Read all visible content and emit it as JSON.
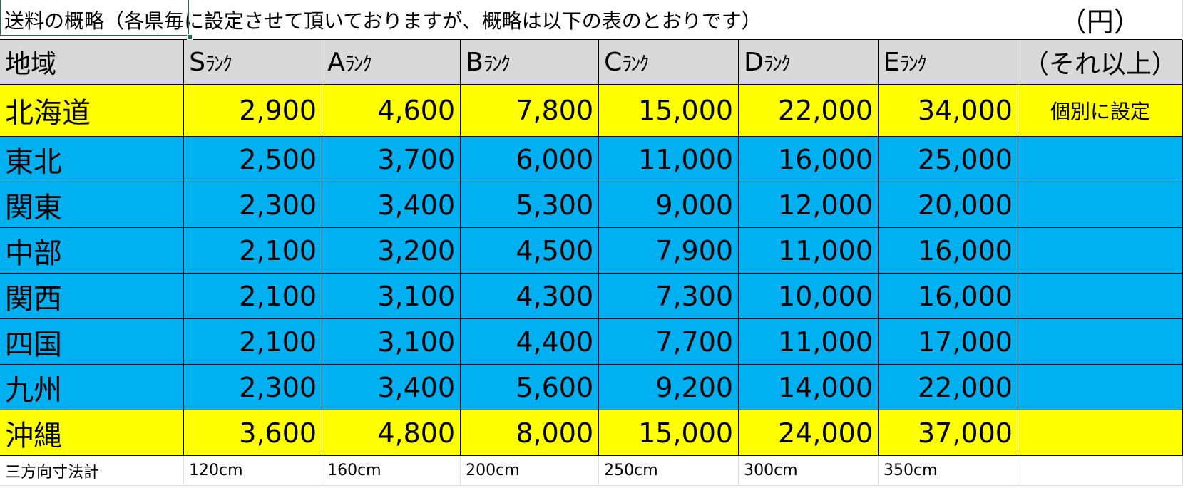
{
  "title": "送料の概略（各県毎に設定させて頂いておりますが、概略は以下の表のとおりです）",
  "unit": "（円）",
  "header": {
    "region": "地域",
    "ranks": [
      {
        "letter": "S",
        "kana": "ﾗﾝｸ"
      },
      {
        "letter": "A",
        "kana": "ﾗﾝｸ"
      },
      {
        "letter": "B",
        "kana": "ﾗﾝｸ"
      },
      {
        "letter": "C",
        "kana": "ﾗﾝｸ"
      },
      {
        "letter": "D",
        "kana": "ﾗﾝｸ"
      },
      {
        "letter": "E",
        "kana": "ﾗﾝｸ"
      }
    ],
    "above": "（それ以上）"
  },
  "rows": [
    {
      "region": "北海道",
      "values": [
        "2,900",
        "4,600",
        "7,800",
        "15,000",
        "22,000",
        "34,000"
      ],
      "note": "個別に設定"
    },
    {
      "region": "東北",
      "values": [
        "2,500",
        "3,700",
        "6,000",
        "11,000",
        "16,000",
        "25,000"
      ],
      "note": ""
    },
    {
      "region": "関東",
      "values": [
        "2,300",
        "3,400",
        "5,300",
        "9,000",
        "12,000",
        "20,000"
      ],
      "note": ""
    },
    {
      "region": "中部",
      "values": [
        "2,100",
        "3,200",
        "4,500",
        "7,900",
        "11,000",
        "16,000"
      ],
      "note": ""
    },
    {
      "region": "関西",
      "values": [
        "2,100",
        "3,100",
        "4,300",
        "7,300",
        "10,000",
        "16,000"
      ],
      "note": ""
    },
    {
      "region": "四国",
      "values": [
        "2,100",
        "3,100",
        "4,400",
        "7,700",
        "11,000",
        "17,000"
      ],
      "note": ""
    },
    {
      "region": "九州",
      "values": [
        "2,300",
        "3,400",
        "5,600",
        "9,200",
        "14,000",
        "22,000"
      ],
      "note": ""
    },
    {
      "region": "沖縄",
      "values": [
        "3,600",
        "4,800",
        "8,000",
        "15,000",
        "24,000",
        "37,000"
      ],
      "note": ""
    }
  ],
  "footer": {
    "label": "三方向寸法計",
    "sizes": [
      "120cm",
      "160cm",
      "200cm",
      "250cm",
      "300cm",
      "350cm"
    ]
  },
  "colors": {
    "header_bg": "#d9d9d9",
    "yellow_rows": "#ffff00",
    "blue_rows": "#00b0f0",
    "selection": "#217346"
  }
}
